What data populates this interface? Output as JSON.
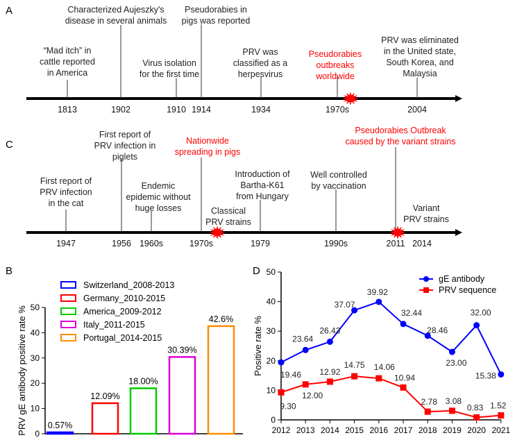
{
  "panels": {
    "a": "A",
    "b": "B",
    "c": "C",
    "d": "D"
  },
  "colors": {
    "black": "#111111",
    "red": "#ff0000",
    "blue": "#0000ff"
  },
  "timeline_a": {
    "events": [
      {
        "year": "1813",
        "lines": [
          "“Mad itch” in",
          "cattle reported",
          "in America"
        ],
        "highlight": false
      },
      {
        "year": "1902",
        "lines": [
          "Characterized Aujeszky's",
          "disease in several animals"
        ],
        "highlight": false
      },
      {
        "year": "1910",
        "lines": [
          "Virus isolation",
          "for the first time"
        ],
        "highlight": false
      },
      {
        "year": "1914",
        "lines": [
          "Pseudorabies in",
          "pigs was reported"
        ],
        "highlight": false
      },
      {
        "year": "1934",
        "lines": [
          "PRV was",
          "classified as a",
          "herpesvirus"
        ],
        "highlight": false
      },
      {
        "year": "1970s",
        "lines": [
          "Pseudorabies",
          "outbreaks",
          "worldwide"
        ],
        "highlight": true
      },
      {
        "year": "2004",
        "lines": [
          "PRV was eliminated",
          "in the United state,",
          "South Korea, and",
          "Malaysia"
        ],
        "highlight": false
      }
    ],
    "star_icons": [
      "outbreak-star-icon"
    ]
  },
  "timeline_c": {
    "events": [
      {
        "year": "1947",
        "lines": [
          "First report of",
          "PRV infection",
          "in the cat"
        ],
        "highlight": false
      },
      {
        "year": "1956",
        "lines": [
          "First report of",
          "PRV infection in",
          "piglets"
        ],
        "highlight": false
      },
      {
        "year": "1960s",
        "lines": [
          "Endemic",
          "epidemic without",
          "huge losses"
        ],
        "highlight": false
      },
      {
        "year": "1970s",
        "lines": [
          "Nationwide",
          "spreading in pigs"
        ],
        "highlight": true
      },
      {
        "year": "1979",
        "lines": [
          "Introduction of",
          "Bartha-K61",
          "from Hungary"
        ],
        "highlight": false
      },
      {
        "year": "1990s",
        "lines": [
          "Well controlled",
          "by vaccination"
        ],
        "highlight": false
      },
      {
        "year": "2011",
        "lines": [
          "Pseudorabies Outbreak",
          "caused by the variant strains"
        ],
        "highlight": true
      },
      {
        "year": "2014",
        "lines": [],
        "highlight": false
      }
    ],
    "annotations": [
      [
        "Classical",
        "PRV strains"
      ],
      [
        "Variant",
        "PRV strains"
      ]
    ],
    "star_icons": [
      "outbreak-star-icon",
      "outbreak-star-icon"
    ]
  },
  "chart_data": [
    {
      "type": "bar",
      "title": "",
      "ylabel": "PRV gE antibody positive rate %",
      "xlabel": "",
      "ylim": [
        0,
        50
      ],
      "yticks": [
        0,
        10,
        20,
        30,
        40,
        50
      ],
      "legend": "top-left",
      "categories": [
        "Switzerland_2008-2013",
        "Germany_2010-2015",
        "America_2009-2012",
        "Italy_2011-2015",
        "Portugal_2014-2015"
      ],
      "values": [
        0.57,
        12.09,
        18.0,
        30.39,
        42.6
      ],
      "data_labels": [
        "0.57%",
        "12.09%",
        "18.00%",
        "30.39%",
        "42.6%"
      ],
      "colors": [
        "#0000ff",
        "#ff0000",
        "#00cc00",
        "#dd00dd",
        "#ff8c00"
      ],
      "fill": "outline"
    },
    {
      "type": "line",
      "title": "",
      "ylabel": "Positive rate %",
      "xlabel": "",
      "ylim": [
        0,
        50
      ],
      "yticks": [
        0,
        10,
        20,
        30,
        40,
        50
      ],
      "legend": "top-right",
      "x": [
        2012,
        2013,
        2014,
        2015,
        2016,
        2017,
        2018,
        2019,
        2020,
        2021
      ],
      "series": [
        {
          "name": "gE antibody",
          "color": "#0000ff",
          "marker": "circle",
          "values": [
            19.46,
            23.64,
            26.43,
            37.07,
            39.92,
            32.44,
            28.46,
            23.0,
            32.0,
            15.38
          ],
          "labels": [
            "19.46",
            "23.64",
            "26.43",
            "37.07",
            "39.92",
            "32.44",
            "28.46",
            "23.00",
            "32.00",
            "15.38"
          ]
        },
        {
          "name": "PRV sequence",
          "color": "#ff0000",
          "marker": "square",
          "values": [
            9.3,
            12.0,
            12.92,
            14.75,
            14.06,
            10.94,
            2.78,
            3.08,
            0.83,
            1.52
          ],
          "labels": [
            "9.30",
            "12.00",
            "12.92",
            "14.75",
            "14.06",
            "10.94",
            "2.78",
            "3.08",
            "0.83",
            "1.52"
          ]
        }
      ]
    }
  ]
}
